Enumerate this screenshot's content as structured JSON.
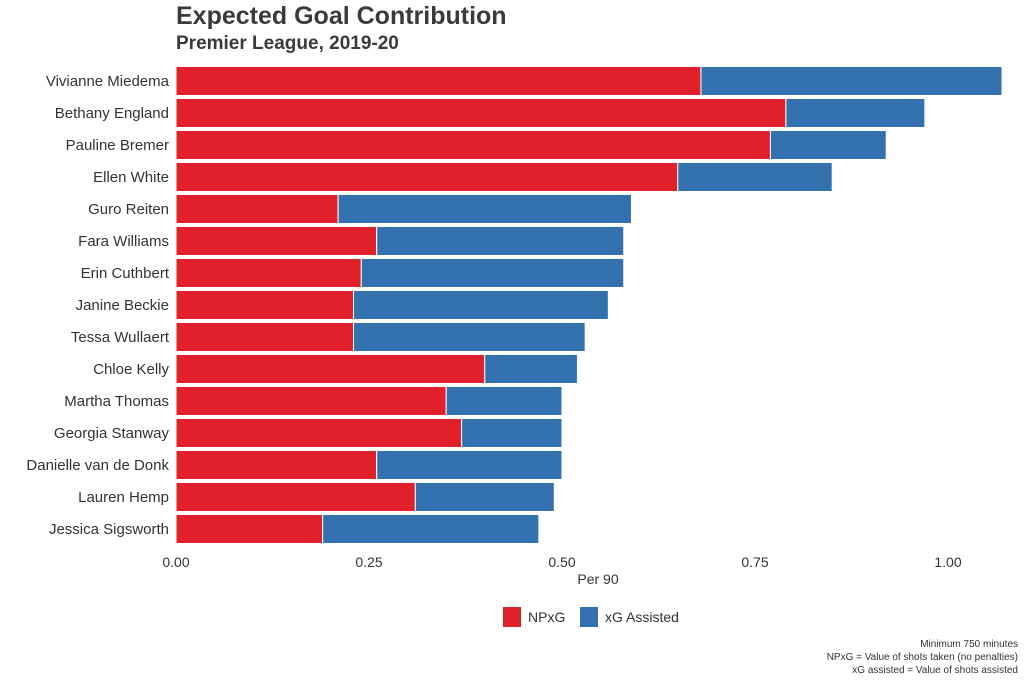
{
  "title": "Expected Goal Contribution",
  "subtitle": "Premier League, 2019-20",
  "chart_data": {
    "type": "bar",
    "orientation": "horizontal",
    "stacked": true,
    "categories": [
      "Vivianne Miedema",
      "Bethany England",
      "Pauline Bremer",
      "Ellen White",
      "Guro Reiten",
      "Fara Williams",
      "Erin Cuthbert",
      "Janine Beckie",
      "Tessa Wullaert",
      "Chloe Kelly",
      "Martha Thomas",
      "Georgia Stanway",
      "Danielle van de Donk",
      "Lauren Hemp",
      "Jessica Sigsworth"
    ],
    "series": [
      {
        "name": "NPxG",
        "color": "#e0202a",
        "values": [
          0.68,
          0.79,
          0.77,
          0.65,
          0.21,
          0.26,
          0.24,
          0.23,
          0.23,
          0.4,
          0.35,
          0.37,
          0.26,
          0.31,
          0.19
        ]
      },
      {
        "name": "xG Assisted",
        "color": "#3270ae",
        "values": [
          0.39,
          0.18,
          0.15,
          0.2,
          0.38,
          0.32,
          0.34,
          0.33,
          0.3,
          0.12,
          0.15,
          0.13,
          0.24,
          0.18,
          0.28
        ]
      }
    ],
    "xlabel": "Per 90",
    "ylabel": "",
    "xlim": [
      0,
      1.07
    ],
    "xticks": [
      "0.00",
      "0.25",
      "0.50",
      "0.75",
      "1.00"
    ],
    "grid": false,
    "legend_position": "bottom"
  },
  "caption": {
    "line1": "Minimum 750 minutes",
    "line2": "NPxG = Value of shots taken (no penalties)",
    "line3": "xG assisted = Value of shots assisted"
  }
}
